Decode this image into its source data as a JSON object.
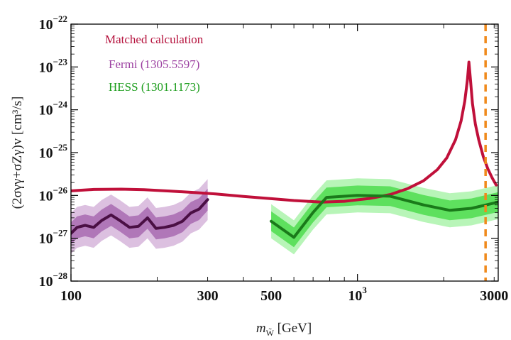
{
  "chart_data": {
    "type": "line",
    "xscale": "log",
    "yscale": "log",
    "xlim": [
      100,
      3100
    ],
    "ylim": [
      1e-28,
      1e-22
    ],
    "xlabel_main": "m",
    "xlabel_sub": "W̃",
    "xlabel_unit": " [GeV]",
    "ylabel": "(2σγγ+σZγ)v [cm³/s]",
    "x_ticks": [
      {
        "value": 100,
        "label": "100"
      },
      {
        "value": 300,
        "label": "300"
      },
      {
        "value": 500,
        "label": "500"
      },
      {
        "value": 1000,
        "label": "10",
        "sup": "3"
      },
      {
        "value": 3000,
        "label": "3000"
      }
    ],
    "y_ticks": [
      {
        "value": 1e-28,
        "label": "10",
        "sup": "−28"
      },
      {
        "value": 1e-27,
        "label": "10",
        "sup": "−27"
      },
      {
        "value": 1e-26,
        "label": "10",
        "sup": "−26"
      },
      {
        "value": 1e-25,
        "label": "10",
        "sup": "−25"
      },
      {
        "value": 1e-24,
        "label": "10",
        "sup": "−24"
      },
      {
        "value": 1e-23,
        "label": "10",
        "sup": "−23"
      },
      {
        "value": 1e-22,
        "label": "10",
        "sup": "−22"
      }
    ],
    "legend": [
      {
        "name": "Matched calculation",
        "color": "#b5113c"
      },
      {
        "name": "Fermi (1305.5597)",
        "color": "#9b3fa0"
      },
      {
        "name": "HESS (1301.1173)",
        "color": "#1a9c1a"
      }
    ],
    "series": [
      {
        "name": "Matched calculation",
        "color": "#c0103a",
        "x": [
          100,
          120,
          150,
          180,
          220,
          270,
          320,
          400,
          500,
          600,
          750,
          900,
          1100,
          1300,
          1500,
          1700,
          1900,
          2050,
          2200,
          2300,
          2370,
          2420,
          2450,
          2480,
          2520,
          2580,
          2650,
          2750,
          2850,
          2950,
          3050
        ],
        "y": [
          1.28e-26,
          1.38e-26,
          1.4e-26,
          1.36e-26,
          1.27e-26,
          1.17e-26,
          1.08e-26,
          9.5e-27,
          8.4e-27,
          7.6e-27,
          7e-27,
          7.3e-27,
          8.5e-27,
          1.05e-26,
          1.45e-26,
          2.2e-26,
          4e-26,
          7.5e-26,
          2e-25,
          5.5e-25,
          1.6e-24,
          5e-24,
          1.3e-23,
          5e-24,
          1.4e-24,
          4.6e-25,
          2e-25,
          8e-26,
          4.2e-26,
          2.6e-26,
          1.75e-26
        ]
      },
      {
        "name": "Fermi (1305.5597)",
        "color": "#4a0f44",
        "x": [
          100,
          105,
          112,
          120,
          128,
          138,
          148,
          160,
          172,
          185,
          198,
          212,
          228,
          245,
          262,
          280,
          300
        ],
        "y": [
          1.3e-27,
          1.8e-27,
          2e-27,
          1.8e-27,
          2.6e-27,
          3.5e-27,
          2.6e-27,
          1.8e-27,
          1.9e-27,
          3e-27,
          1.7e-27,
          1.8e-27,
          2e-27,
          2.5e-27,
          3.9e-27,
          4.8e-27,
          8e-27
        ],
        "band_inner_factor": 1.8,
        "band_outer_factor": 3.0,
        "band_inner_color": "#b077b8",
        "band_outer_color": "#dcc0e0"
      },
      {
        "name": "HESS (1301.1173)",
        "color": "#1a7a1a",
        "x": [
          500,
          600,
          700,
          780,
          1000,
          1300,
          1700,
          2100,
          2500,
          3100
        ],
        "y": [
          2.5e-27,
          1.05e-27,
          4e-27,
          9e-27,
          1e-26,
          9.6e-27,
          6e-27,
          4.5e-27,
          5e-27,
          7e-27
        ],
        "band_inner_factor": 1.7,
        "band_outer_factor": 2.5,
        "band_inner_color": "#5ee05e",
        "band_outer_color": "#b8f5b8"
      }
    ],
    "vline": {
      "x": 2800,
      "color": "#f08a1c",
      "style": "dashed"
    }
  }
}
